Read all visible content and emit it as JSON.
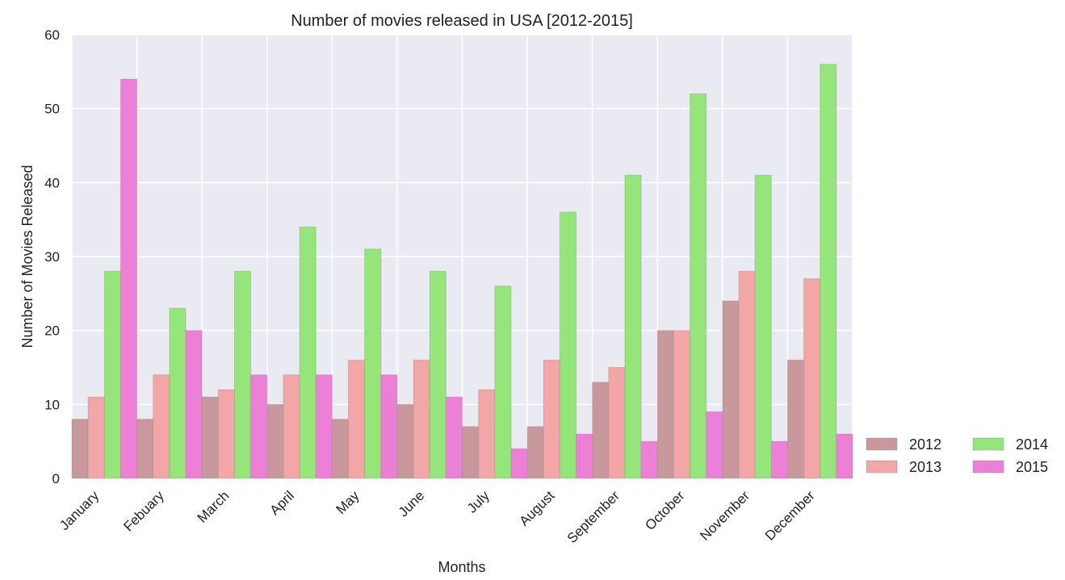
{
  "chart_data": {
    "type": "bar",
    "title": "Number of movies released in USA [2012-2015]",
    "xlabel": "Months",
    "ylabel": "Number of Movies Released",
    "categories": [
      "January",
      "Febuary",
      "March",
      "April",
      "May",
      "June",
      "July",
      "August",
      "September",
      "October",
      "November",
      "December"
    ],
    "ylim": [
      0,
      60
    ],
    "yticks": [
      0,
      10,
      20,
      30,
      40,
      50,
      60
    ],
    "grid": true,
    "legend_position": "bottom-right, outside plot",
    "series": [
      {
        "name": "2012",
        "color": "#c9989c",
        "values": [
          8,
          8,
          11,
          10,
          8,
          10,
          7,
          7,
          13,
          20,
          24,
          16
        ]
      },
      {
        "name": "2013",
        "color": "#f2a6a6",
        "values": [
          11,
          14,
          12,
          14,
          16,
          16,
          12,
          16,
          15,
          20,
          28,
          27
        ]
      },
      {
        "name": "2014",
        "color": "#95e57a",
        "values": [
          28,
          23,
          28,
          34,
          31,
          28,
          26,
          36,
          41,
          52,
          41,
          56
        ]
      },
      {
        "name": "2015",
        "color": "#ec7fd6",
        "values": [
          54,
          20,
          14,
          14,
          14,
          11,
          4,
          6,
          5,
          9,
          5,
          6
        ]
      }
    ],
    "plot_background": "#eaeaf2"
  }
}
